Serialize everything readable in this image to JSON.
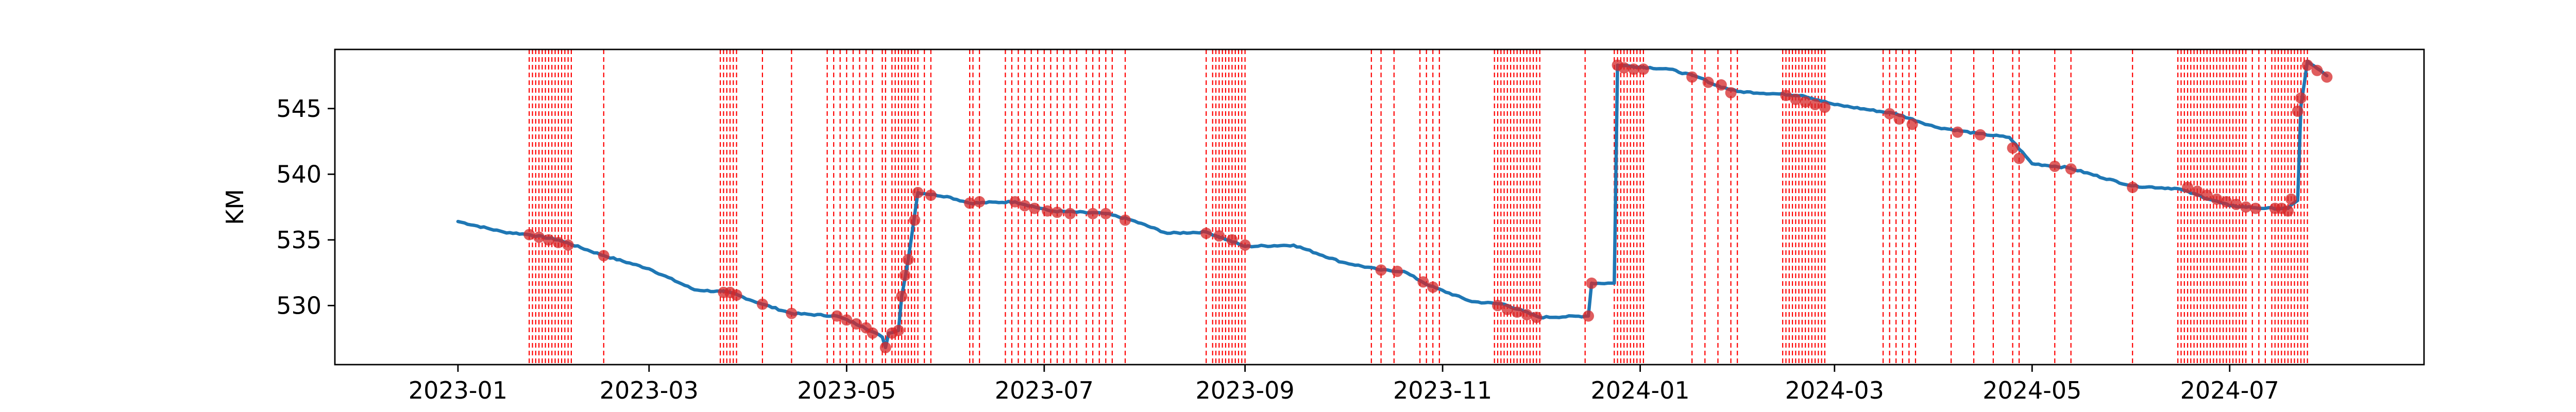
{
  "chart_data": {
    "type": "line",
    "title": "",
    "xlabel": "",
    "ylabel": "KM",
    "xlim": [
      "2022-11-24",
      "2024-08-30"
    ],
    "ylim": [
      525.5,
      549.5
    ],
    "x_ticks": [
      "2023-01",
      "2023-03",
      "2023-05",
      "2023-07",
      "2023-09",
      "2023-11",
      "2024-01",
      "2024-03",
      "2024-05",
      "2024-07"
    ],
    "y_ticks": [
      530,
      535,
      540,
      545
    ],
    "grid": false,
    "legend": "none",
    "series": [
      {
        "values": [
          [
            "2023-01-01",
            536.4
          ],
          [
            "2023-01-15",
            535.6
          ],
          [
            "2023-01-23",
            535.4
          ],
          [
            "2023-02-01",
            535.0
          ],
          [
            "2023-02-15",
            533.8
          ],
          [
            "2023-03-01",
            532.8
          ],
          [
            "2023-03-15",
            531.2
          ],
          [
            "2023-03-26",
            531.0
          ],
          [
            "2023-04-05",
            530.1
          ],
          [
            "2023-04-14",
            529.4
          ],
          [
            "2023-04-28",
            529.2
          ],
          [
            "2023-05-06",
            528.4
          ],
          [
            "2023-05-12",
            527.6
          ],
          [
            "2023-05-13",
            526.8
          ],
          [
            "2023-05-14",
            527.9
          ],
          [
            "2023-05-17",
            528.1
          ],
          [
            "2023-05-18",
            530.7
          ],
          [
            "2023-05-20",
            533.5
          ],
          [
            "2023-05-23",
            538.6
          ],
          [
            "2023-06-01",
            538.3
          ],
          [
            "2023-06-08",
            537.8
          ],
          [
            "2023-06-22",
            537.9
          ],
          [
            "2023-07-03",
            537.2
          ],
          [
            "2023-07-20",
            537.0
          ],
          [
            "2023-07-28",
            536.5
          ],
          [
            "2023-08-08",
            535.5
          ],
          [
            "2023-08-20",
            535.6
          ],
          [
            "2023-09-01",
            534.5
          ],
          [
            "2023-09-16",
            534.6
          ],
          [
            "2023-10-01",
            533.3
          ],
          [
            "2023-10-13",
            532.7
          ],
          [
            "2023-10-20",
            532.6
          ],
          [
            "2023-10-28",
            531.5
          ],
          [
            "2023-11-10",
            530.3
          ],
          [
            "2023-11-20",
            530.1
          ],
          [
            "2023-12-01",
            529.1
          ],
          [
            "2023-12-16",
            529.2
          ],
          [
            "2023-12-17",
            531.7
          ],
          [
            "2023-12-24",
            531.7
          ],
          [
            "2023-12-25",
            548.3
          ],
          [
            "2024-01-10",
            548.0
          ],
          [
            "2024-01-20",
            547.3
          ],
          [
            "2024-01-24",
            546.8
          ],
          [
            "2024-01-31",
            546.3
          ],
          [
            "2024-02-20",
            546.0
          ],
          [
            "2024-03-01",
            545.3
          ],
          [
            "2024-03-20",
            544.6
          ],
          [
            "2024-04-01",
            543.6
          ],
          [
            "2024-04-14",
            543.1
          ],
          [
            "2024-04-24",
            542.8
          ],
          [
            "2024-05-01",
            540.8
          ],
          [
            "2024-05-12",
            540.5
          ],
          [
            "2024-06-01",
            539.1
          ],
          [
            "2024-06-15",
            538.9
          ],
          [
            "2024-07-01",
            537.6
          ],
          [
            "2024-07-12",
            537.4
          ],
          [
            "2024-07-19",
            537.4
          ],
          [
            "2024-07-22",
            538.0
          ],
          [
            "2024-07-23",
            545.2
          ],
          [
            "2024-07-25",
            548.6
          ],
          [
            "2024-07-31",
            547.5
          ]
        ],
        "markers": [
          [
            "2023-01-23",
            535.4
          ],
          [
            "2023-01-26",
            535.2
          ],
          [
            "2023-01-29",
            535.0
          ],
          [
            "2023-02-01",
            534.8
          ],
          [
            "2023-02-04",
            534.6
          ],
          [
            "2023-02-15",
            533.8
          ],
          [
            "2023-03-24",
            531.0
          ],
          [
            "2023-03-26",
            531.0
          ],
          [
            "2023-03-28",
            530.8
          ],
          [
            "2023-04-05",
            530.1
          ],
          [
            "2023-04-14",
            529.4
          ],
          [
            "2023-04-28",
            529.2
          ],
          [
            "2023-05-01",
            528.9
          ],
          [
            "2023-05-04",
            528.6
          ],
          [
            "2023-05-07",
            528.3
          ],
          [
            "2023-05-09",
            527.9
          ],
          [
            "2023-05-13",
            526.8
          ],
          [
            "2023-05-15",
            527.9
          ],
          [
            "2023-05-17",
            528.1
          ],
          [
            "2023-05-18",
            530.7
          ],
          [
            "2023-05-19",
            532.3
          ],
          [
            "2023-05-20",
            533.5
          ],
          [
            "2023-05-22",
            536.5
          ],
          [
            "2023-05-23",
            538.6
          ],
          [
            "2023-05-27",
            538.4
          ],
          [
            "2023-06-08",
            537.8
          ],
          [
            "2023-06-11",
            537.9
          ],
          [
            "2023-06-22",
            537.9
          ],
          [
            "2023-06-25",
            537.6
          ],
          [
            "2023-06-28",
            537.4
          ],
          [
            "2023-07-02",
            537.2
          ],
          [
            "2023-07-05",
            537.1
          ],
          [
            "2023-07-09",
            537.0
          ],
          [
            "2023-07-16",
            537.0
          ],
          [
            "2023-07-20",
            537.0
          ],
          [
            "2023-07-26",
            536.5
          ],
          [
            "2023-08-20",
            535.5
          ],
          [
            "2023-08-24",
            535.3
          ],
          [
            "2023-08-28",
            535.0
          ],
          [
            "2023-09-01",
            534.6
          ],
          [
            "2023-10-13",
            532.7
          ],
          [
            "2023-10-18",
            532.6
          ],
          [
            "2023-10-26",
            531.8
          ],
          [
            "2023-10-29",
            531.4
          ],
          [
            "2023-11-18",
            530.0
          ],
          [
            "2023-11-21",
            529.7
          ],
          [
            "2023-11-24",
            529.5
          ],
          [
            "2023-11-27",
            529.3
          ],
          [
            "2023-11-30",
            529.1
          ],
          [
            "2023-12-16",
            529.2
          ],
          [
            "2023-12-17",
            531.7
          ],
          [
            "2023-12-25",
            548.3
          ],
          [
            "2023-12-27",
            548.1
          ],
          [
            "2023-12-30",
            548.0
          ],
          [
            "2024-01-02",
            548.0
          ],
          [
            "2024-01-17",
            547.4
          ],
          [
            "2024-01-22",
            547.0
          ],
          [
            "2024-01-26",
            546.8
          ],
          [
            "2024-01-29",
            546.2
          ],
          [
            "2024-02-15",
            546.0
          ],
          [
            "2024-02-18",
            545.7
          ],
          [
            "2024-02-21",
            545.5
          ],
          [
            "2024-02-24",
            545.3
          ],
          [
            "2024-02-27",
            545.1
          ],
          [
            "2024-03-18",
            544.6
          ],
          [
            "2024-03-21",
            544.2
          ],
          [
            "2024-03-25",
            543.8
          ],
          [
            "2024-04-08",
            543.2
          ],
          [
            "2024-04-15",
            543.0
          ],
          [
            "2024-04-25",
            542.0
          ],
          [
            "2024-04-27",
            541.2
          ],
          [
            "2024-05-08",
            540.6
          ],
          [
            "2024-05-13",
            540.4
          ],
          [
            "2024-06-01",
            539.0
          ],
          [
            "2024-06-18",
            539.0
          ],
          [
            "2024-06-21",
            538.7
          ],
          [
            "2024-06-24",
            538.4
          ],
          [
            "2024-06-27",
            538.1
          ],
          [
            "2024-06-30",
            537.9
          ],
          [
            "2024-07-03",
            537.7
          ],
          [
            "2024-07-06",
            537.5
          ],
          [
            "2024-07-09",
            537.4
          ],
          [
            "2024-07-15",
            537.4
          ],
          [
            "2024-07-17",
            537.4
          ],
          [
            "2024-07-19",
            537.2
          ],
          [
            "2024-07-20",
            538.1
          ],
          [
            "2024-07-22",
            544.8
          ],
          [
            "2024-07-23",
            545.8
          ],
          [
            "2024-07-25",
            548.3
          ],
          [
            "2024-07-28",
            547.9
          ],
          [
            "2024-07-31",
            547.4
          ]
        ]
      }
    ],
    "event_lines": [
      "2023-01-23",
      "2023-01-24",
      "2023-01-25",
      "2023-01-26",
      "2023-01-27",
      "2023-01-28",
      "2023-01-29",
      "2023-01-30",
      "2023-01-31",
      "2023-02-01",
      "2023-02-02",
      "2023-02-03",
      "2023-02-04",
      "2023-02-05",
      "2023-02-15",
      "2023-03-23",
      "2023-03-24",
      "2023-03-25",
      "2023-03-26",
      "2023-03-27",
      "2023-03-28",
      "2023-04-05",
      "2023-04-14",
      "2023-04-25",
      "2023-04-27",
      "2023-04-29",
      "2023-05-01",
      "2023-05-03",
      "2023-05-05",
      "2023-05-07",
      "2023-05-09",
      "2023-05-12",
      "2023-05-13",
      "2023-05-15",
      "2023-05-16",
      "2023-05-17",
      "2023-05-18",
      "2023-05-19",
      "2023-05-20",
      "2023-05-21",
      "2023-05-22",
      "2023-05-23",
      "2023-05-25",
      "2023-05-27",
      "2023-06-08",
      "2023-06-09",
      "2023-06-11",
      "2023-06-19",
      "2023-06-21",
      "2023-06-23",
      "2023-06-25",
      "2023-06-27",
      "2023-06-29",
      "2023-07-01",
      "2023-07-03",
      "2023-07-05",
      "2023-07-07",
      "2023-07-09",
      "2023-07-11",
      "2023-07-14",
      "2023-07-16",
      "2023-07-18",
      "2023-07-20",
      "2023-07-22",
      "2023-07-26",
      "2023-08-20",
      "2023-08-22",
      "2023-08-23",
      "2023-08-24",
      "2023-08-25",
      "2023-08-26",
      "2023-08-27",
      "2023-08-28",
      "2023-08-29",
      "2023-08-30",
      "2023-08-31",
      "2023-09-01",
      "2023-10-10",
      "2023-10-13",
      "2023-10-17",
      "2023-10-25",
      "2023-10-27",
      "2023-10-29",
      "2023-10-31",
      "2023-11-17",
      "2023-11-18",
      "2023-11-19",
      "2023-11-20",
      "2023-11-21",
      "2023-11-22",
      "2023-11-23",
      "2023-11-24",
      "2023-11-25",
      "2023-11-26",
      "2023-11-27",
      "2023-11-28",
      "2023-11-29",
      "2023-11-30",
      "2023-12-01",
      "2023-12-15",
      "2023-12-24",
      "2023-12-25",
      "2023-12-26",
      "2023-12-27",
      "2023-12-28",
      "2023-12-29",
      "2023-12-30",
      "2023-12-31",
      "2024-01-01",
      "2024-01-02",
      "2024-01-17",
      "2024-01-21",
      "2024-01-25",
      "2024-01-29",
      "2024-01-31",
      "2024-02-14",
      "2024-02-15",
      "2024-02-16",
      "2024-02-17",
      "2024-02-18",
      "2024-02-19",
      "2024-02-20",
      "2024-02-21",
      "2024-02-22",
      "2024-02-23",
      "2024-02-24",
      "2024-02-25",
      "2024-02-26",
      "2024-02-27",
      "2024-03-16",
      "2024-03-18",
      "2024-03-20",
      "2024-03-22",
      "2024-03-24",
      "2024-03-26",
      "2024-04-06",
      "2024-04-13",
      "2024-04-19",
      "2024-04-25",
      "2024-04-27",
      "2024-05-08",
      "2024-05-13",
      "2024-06-01",
      "2024-06-15",
      "2024-06-16",
      "2024-06-17",
      "2024-06-18",
      "2024-06-19",
      "2024-06-20",
      "2024-06-21",
      "2024-06-22",
      "2024-06-23",
      "2024-06-24",
      "2024-06-25",
      "2024-06-26",
      "2024-06-27",
      "2024-06-28",
      "2024-06-29",
      "2024-06-30",
      "2024-07-01",
      "2024-07-02",
      "2024-07-03",
      "2024-07-04",
      "2024-07-05",
      "2024-07-06",
      "2024-07-08",
      "2024-07-10",
      "2024-07-12",
      "2024-07-14",
      "2024-07-15",
      "2024-07-16",
      "2024-07-17",
      "2024-07-18",
      "2024-07-19",
      "2024-07-20",
      "2024-07-21",
      "2024-07-22",
      "2024-07-23",
      "2024-07-24",
      "2024-07-25"
    ],
    "colors": {
      "line": "#1f77b4",
      "marker": "#d62728",
      "event_line": "#ff0000",
      "axes": "#000000"
    }
  }
}
